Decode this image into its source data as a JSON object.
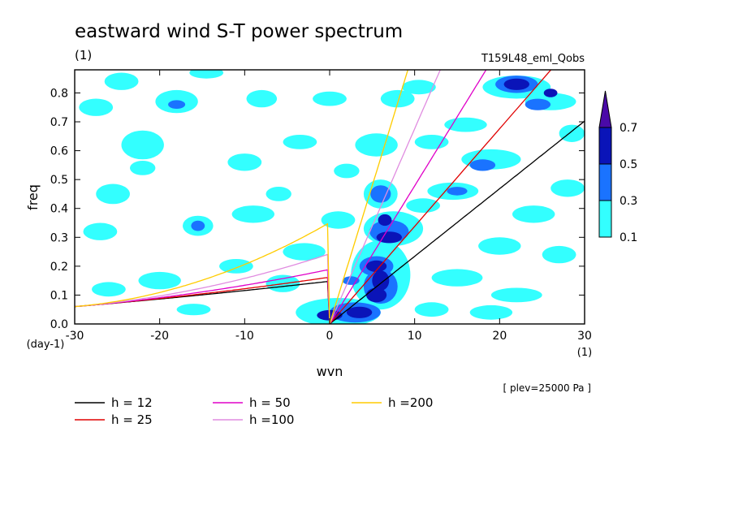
{
  "title": "eastward wind S-T power spectrum",
  "subtitle_left": "(1)",
  "subtitle_right": "T159L48_eml_Qobs",
  "plev_label": "[ plev=25000 Pa ]",
  "chart_data": {
    "type": "heatmap",
    "title": "eastward wind S-T power spectrum",
    "xlabel": "wvn",
    "ylabel": "freq",
    "x_unit_label": "(1)",
    "y_unit_label": "(day-1)",
    "xlim": [
      -30,
      30
    ],
    "ylim": [
      0,
      0.88
    ],
    "x_ticks": [
      -30,
      -20,
      -10,
      0,
      10,
      20,
      30
    ],
    "x_tick_labels": [
      "-30",
      "-20",
      "-10",
      "0",
      "10",
      "20",
      "30"
    ],
    "y_ticks": [
      0,
      0.1,
      0.2,
      0.3,
      0.4,
      0.5,
      0.6,
      0.7,
      0.8
    ],
    "y_tick_labels": [
      "0.0",
      "0.1",
      "0.2",
      "0.3",
      "0.4",
      "0.5",
      "0.6",
      "0.7",
      "0.8"
    ],
    "grid": false,
    "colorbar": {
      "levels": [
        "0.1",
        "0.3",
        "0.5",
        "0.7"
      ],
      "colors": [
        "#33ffff",
        "#1a73ff",
        "#0a14b8",
        "#4a0aa8"
      ]
    },
    "dispersion_curves": [
      {
        "name": "h = 12",
        "h": 12,
        "color": "#000000"
      },
      {
        "name": "h = 25",
        "h": 25,
        "color": "#e00000"
      },
      {
        "name": "h = 50",
        "h": 50,
        "color": "#e000c8"
      },
      {
        "name": "h =100",
        "h": 100,
        "color": "#e08ce0"
      },
      {
        "name": "h =200",
        "h": 200,
        "color": "#ffcc00"
      }
    ],
    "contour_regions": [
      {
        "x": 5.5,
        "y": 0.2,
        "rx": 1.2,
        "ry": 0.02,
        "level": 3
      },
      {
        "x": 6.0,
        "y": 0.15,
        "rx": 1.0,
        "ry": 0.035,
        "level": 3
      },
      {
        "x": 5.5,
        "y": 0.1,
        "rx": 1.2,
        "ry": 0.025,
        "level": 3
      },
      {
        "x": 3.5,
        "y": 0.04,
        "rx": 1.5,
        "ry": 0.02,
        "level": 3
      },
      {
        "x": 0.0,
        "y": 0.03,
        "rx": 1.5,
        "ry": 0.018,
        "level": 3
      },
      {
        "x": 7.0,
        "y": 0.3,
        "rx": 1.5,
        "ry": 0.02,
        "level": 3
      },
      {
        "x": 6.5,
        "y": 0.36,
        "rx": 0.8,
        "ry": 0.02,
        "level": 3
      },
      {
        "x": 22.0,
        "y": 0.83,
        "rx": 1.5,
        "ry": 0.02,
        "level": 3
      },
      {
        "x": 26.0,
        "y": 0.8,
        "rx": 0.8,
        "ry": 0.015,
        "level": 3
      },
      {
        "x": 5.5,
        "y": 0.2,
        "rx": 2.0,
        "ry": 0.035,
        "level": 2
      },
      {
        "x": 6.0,
        "y": 0.13,
        "rx": 2.0,
        "ry": 0.06,
        "level": 2
      },
      {
        "x": 3.0,
        "y": 0.04,
        "rx": 3.0,
        "ry": 0.035,
        "level": 2
      },
      {
        "x": 7.0,
        "y": 0.32,
        "rx": 2.3,
        "ry": 0.04,
        "level": 2
      },
      {
        "x": 6.0,
        "y": 0.45,
        "rx": 1.2,
        "ry": 0.03,
        "level": 2
      },
      {
        "x": 22.0,
        "y": 0.83,
        "rx": 2.5,
        "ry": 0.03,
        "level": 2
      },
      {
        "x": 24.5,
        "y": 0.76,
        "rx": 1.5,
        "ry": 0.02,
        "level": 2
      },
      {
        "x": 18.0,
        "y": 0.55,
        "rx": 1.5,
        "ry": 0.02,
        "level": 2
      },
      {
        "x": 15.0,
        "y": 0.46,
        "rx": 1.2,
        "ry": 0.015,
        "level": 2
      },
      {
        "x": 2.5,
        "y": 0.15,
        "rx": 1.0,
        "ry": 0.015,
        "level": 2
      },
      {
        "x": -15.5,
        "y": 0.34,
        "rx": 0.8,
        "ry": 0.018,
        "level": 2
      },
      {
        "x": -18.0,
        "y": 0.76,
        "rx": 1.0,
        "ry": 0.015,
        "level": 2
      },
      {
        "x": 6.0,
        "y": 0.17,
        "rx": 3.5,
        "ry": 0.12,
        "level": 1
      },
      {
        "x": 1.0,
        "y": 0.04,
        "rx": 5.0,
        "ry": 0.05,
        "level": 1
      },
      {
        "x": 7.5,
        "y": 0.33,
        "rx": 3.5,
        "ry": 0.06,
        "level": 1
      },
      {
        "x": 6.0,
        "y": 0.45,
        "rx": 2.0,
        "ry": 0.05,
        "level": 1
      },
      {
        "x": 5.5,
        "y": 0.62,
        "rx": 2.5,
        "ry": 0.04,
        "level": 1
      },
      {
        "x": 8.0,
        "y": 0.78,
        "rx": 2.0,
        "ry": 0.03,
        "level": 1
      },
      {
        "x": 22.0,
        "y": 0.82,
        "rx": 4.0,
        "ry": 0.04,
        "level": 1
      },
      {
        "x": 26.0,
        "y": 0.77,
        "rx": 3.0,
        "ry": 0.03,
        "level": 1
      },
      {
        "x": 19.0,
        "y": 0.57,
        "rx": 3.5,
        "ry": 0.035,
        "level": 1
      },
      {
        "x": 14.5,
        "y": 0.46,
        "rx": 3.0,
        "ry": 0.03,
        "level": 1
      },
      {
        "x": 11.0,
        "y": 0.41,
        "rx": 2.0,
        "ry": 0.025,
        "level": 1
      },
      {
        "x": 24.0,
        "y": 0.38,
        "rx": 2.5,
        "ry": 0.03,
        "level": 1
      },
      {
        "x": 27.0,
        "y": 0.24,
        "rx": 2.0,
        "ry": 0.03,
        "level": 1
      },
      {
        "x": 20.0,
        "y": 0.27,
        "rx": 2.5,
        "ry": 0.03,
        "level": 1
      },
      {
        "x": 15.0,
        "y": 0.16,
        "rx": 3.0,
        "ry": 0.03,
        "level": 1
      },
      {
        "x": 22.0,
        "y": 0.1,
        "rx": 3.0,
        "ry": 0.025,
        "level": 1
      },
      {
        "x": 19.0,
        "y": 0.04,
        "rx": 2.5,
        "ry": 0.025,
        "level": 1
      },
      {
        "x": 12.0,
        "y": 0.05,
        "rx": 2.0,
        "ry": 0.025,
        "level": 1
      },
      {
        "x": 28.0,
        "y": 0.47,
        "rx": 2.0,
        "ry": 0.03,
        "level": 1
      },
      {
        "x": 28.5,
        "y": 0.66,
        "rx": 1.5,
        "ry": 0.03,
        "level": 1
      },
      {
        "x": 16.0,
        "y": 0.69,
        "rx": 2.5,
        "ry": 0.025,
        "level": 1
      },
      {
        "x": 12.0,
        "y": 0.63,
        "rx": 2.0,
        "ry": 0.025,
        "level": 1
      },
      {
        "x": 10.5,
        "y": 0.82,
        "rx": 2.0,
        "ry": 0.025,
        "level": 1
      },
      {
        "x": 1.0,
        "y": 0.36,
        "rx": 2.0,
        "ry": 0.03,
        "level": 1
      },
      {
        "x": -3.0,
        "y": 0.25,
        "rx": 2.5,
        "ry": 0.03,
        "level": 1
      },
      {
        "x": -5.5,
        "y": 0.14,
        "rx": 2.0,
        "ry": 0.03,
        "level": 1
      },
      {
        "x": -9.0,
        "y": 0.38,
        "rx": 2.5,
        "ry": 0.03,
        "level": 1
      },
      {
        "x": -11.0,
        "y": 0.2,
        "rx": 2.0,
        "ry": 0.025,
        "level": 1
      },
      {
        "x": -15.5,
        "y": 0.34,
        "rx": 1.8,
        "ry": 0.035,
        "level": 1
      },
      {
        "x": -18.0,
        "y": 0.77,
        "rx": 2.5,
        "ry": 0.04,
        "level": 1
      },
      {
        "x": -22.0,
        "y": 0.62,
        "rx": 2.5,
        "ry": 0.05,
        "level": 1
      },
      {
        "x": -25.5,
        "y": 0.45,
        "rx": 2.0,
        "ry": 0.035,
        "level": 1
      },
      {
        "x": -27.0,
        "y": 0.32,
        "rx": 2.0,
        "ry": 0.03,
        "level": 1
      },
      {
        "x": -27.5,
        "y": 0.75,
        "rx": 2.0,
        "ry": 0.03,
        "level": 1
      },
      {
        "x": -24.5,
        "y": 0.84,
        "rx": 2.0,
        "ry": 0.03,
        "level": 1
      },
      {
        "x": -14.5,
        "y": 0.87,
        "rx": 2.0,
        "ry": 0.02,
        "level": 1
      },
      {
        "x": -8.0,
        "y": 0.78,
        "rx": 1.8,
        "ry": 0.03,
        "level": 1
      },
      {
        "x": -10.0,
        "y": 0.56,
        "rx": 2.0,
        "ry": 0.03,
        "level": 1
      },
      {
        "x": -3.5,
        "y": 0.63,
        "rx": 2.0,
        "ry": 0.025,
        "level": 1
      },
      {
        "x": 0.0,
        "y": 0.78,
        "rx": 2.0,
        "ry": 0.025,
        "level": 1
      },
      {
        "x": 2.0,
        "y": 0.53,
        "rx": 1.5,
        "ry": 0.025,
        "level": 1
      },
      {
        "x": -20.0,
        "y": 0.15,
        "rx": 2.5,
        "ry": 0.03,
        "level": 1
      },
      {
        "x": -26.0,
        "y": 0.12,
        "rx": 2.0,
        "ry": 0.025,
        "level": 1
      },
      {
        "x": -16.0,
        "y": 0.05,
        "rx": 2.0,
        "ry": 0.02,
        "level": 1
      },
      {
        "x": -22.0,
        "y": 0.54,
        "rx": 1.5,
        "ry": 0.025,
        "level": 1
      },
      {
        "x": -6.0,
        "y": 0.45,
        "rx": 1.5,
        "ry": 0.025,
        "level": 1
      }
    ]
  }
}
